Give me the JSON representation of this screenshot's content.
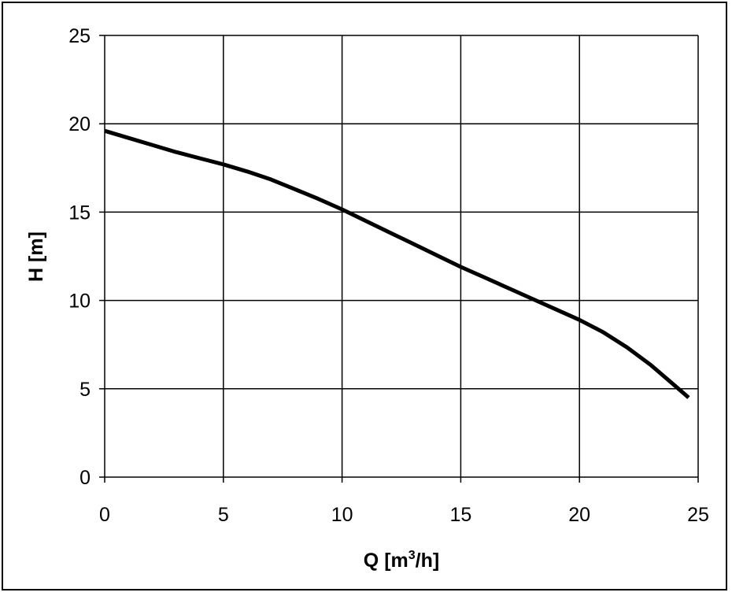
{
  "chart_data": {
    "type": "line",
    "title": "",
    "xlabel": "Q [m",
    "xlabel_sup": "3",
    "xlabel_suffix": "/h]",
    "ylabel": "H [m]",
    "xlim": [
      0,
      25
    ],
    "ylim": [
      0,
      25
    ],
    "xticks": [
      0,
      5,
      10,
      15,
      20,
      25
    ],
    "yticks": [
      0,
      5,
      10,
      15,
      20,
      25
    ],
    "grid": true,
    "legend": "none",
    "series": [
      {
        "color": "#000000",
        "points": [
          [
            0,
            19.6
          ],
          [
            1,
            19.2
          ],
          [
            2,
            18.8
          ],
          [
            3,
            18.4
          ],
          [
            4,
            18.05
          ],
          [
            5,
            17.7
          ],
          [
            6,
            17.3
          ],
          [
            7,
            16.85
          ],
          [
            8,
            16.3
          ],
          [
            9,
            15.75
          ],
          [
            10,
            15.15
          ],
          [
            11,
            14.5
          ],
          [
            12,
            13.85
          ],
          [
            13,
            13.2
          ],
          [
            14,
            12.55
          ],
          [
            15,
            11.9
          ],
          [
            16,
            11.3
          ],
          [
            17,
            10.7
          ],
          [
            18,
            10.1
          ],
          [
            19,
            9.5
          ],
          [
            20,
            8.9
          ],
          [
            21,
            8.2
          ],
          [
            22,
            7.35
          ],
          [
            23,
            6.35
          ],
          [
            24,
            5.2
          ],
          [
            24.6,
            4.5
          ]
        ]
      }
    ]
  }
}
